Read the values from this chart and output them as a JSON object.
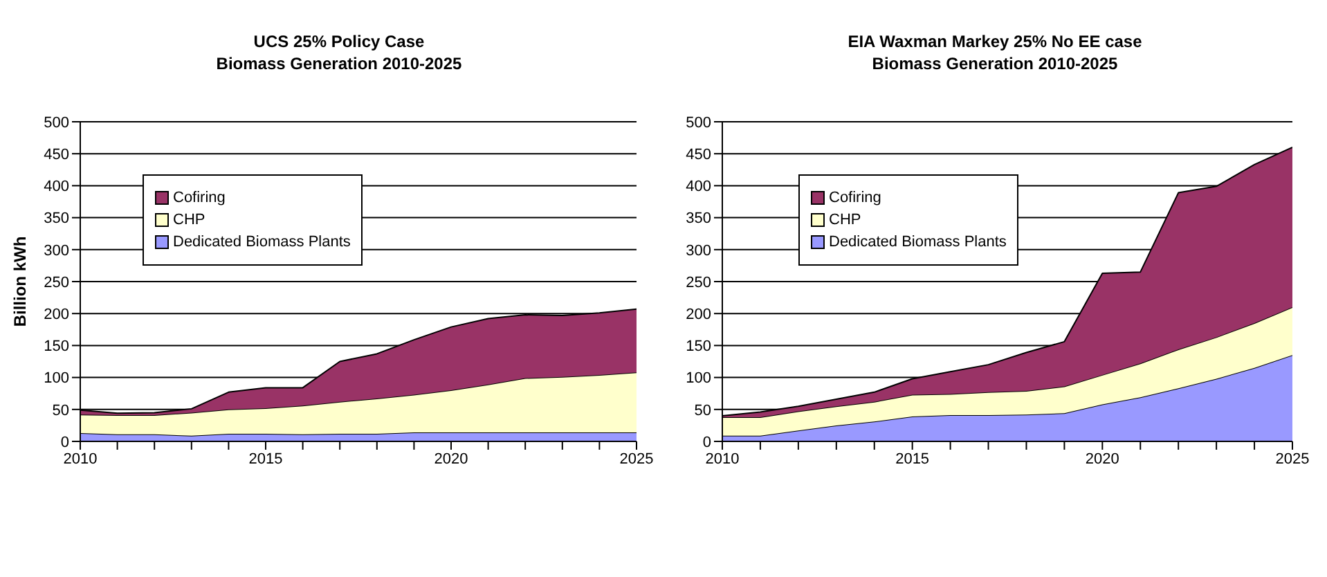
{
  "chart_data": [
    {
      "type": "area",
      "stacked": true,
      "title": "UCS 25% Policy Case\nBiomass Generation 2010-2025",
      "ylabel": "Billion kWh",
      "x": [
        2010,
        2011,
        2012,
        2013,
        2014,
        2015,
        2016,
        2017,
        2018,
        2019,
        2020,
        2021,
        2022,
        2023,
        2024,
        2025
      ],
      "xlim": [
        2010,
        2025
      ],
      "xticks": [
        2010,
        {
          "value": 2011,
          "label": null
        },
        {
          "value": 2012,
          "label": null
        },
        {
          "value": 2013,
          "label": null
        },
        {
          "value": 2014,
          "label": null
        },
        2015,
        {
          "value": 2016,
          "label": null
        },
        {
          "value": 2017,
          "label": null
        },
        {
          "value": 2018,
          "label": null
        },
        {
          "value": 2019,
          "label": null
        },
        2020,
        {
          "value": 2021,
          "label": null
        },
        {
          "value": 2022,
          "label": null
        },
        {
          "value": 2023,
          "label": null
        },
        {
          "value": 2024,
          "label": null
        },
        2025
      ],
      "ylim": [
        0,
        500
      ],
      "yticks": [
        0,
        50,
        100,
        150,
        200,
        250,
        300,
        350,
        400,
        450,
        500
      ],
      "grid": "y",
      "legend": "top left",
      "series": [
        {
          "name": "Dedicated Biomass Plants",
          "color": "#9999ff",
          "values": [
            13,
            11,
            11,
            9,
            12,
            12,
            11,
            12,
            12,
            14,
            14,
            14,
            14,
            14,
            14,
            14
          ]
        },
        {
          "name": "CHP",
          "color": "#ffffcc",
          "values": [
            29,
            30,
            30,
            36,
            38,
            40,
            45,
            50,
            55,
            59,
            66,
            75,
            85,
            87,
            90,
            94
          ]
        },
        {
          "name": "Cofiring",
          "color": "#993366",
          "values": [
            7,
            3,
            4,
            6,
            27,
            32,
            28,
            63,
            70,
            86,
            99,
            103,
            99,
            96,
            97,
            99
          ]
        }
      ]
    },
    {
      "type": "area",
      "stacked": true,
      "title": "EIA Waxman Markey 25% No EE case\nBiomass Generation 2010-2025",
      "x": [
        2010,
        2011,
        2012,
        2013,
        2014,
        2015,
        2016,
        2017,
        2018,
        2019,
        2020,
        2021,
        2022,
        2023,
        2024,
        2025
      ],
      "xlim": [
        2010,
        2025
      ],
      "xticks": [
        2010,
        {
          "value": 2011,
          "label": null
        },
        {
          "value": 2012,
          "label": null
        },
        {
          "value": 2013,
          "label": null
        },
        {
          "value": 2014,
          "label": null
        },
        2015,
        {
          "value": 2016,
          "label": null
        },
        {
          "value": 2017,
          "label": null
        },
        {
          "value": 2018,
          "label": null
        },
        {
          "value": 2019,
          "label": null
        },
        2020,
        {
          "value": 2021,
          "label": null
        },
        {
          "value": 2022,
          "label": null
        },
        {
          "value": 2023,
          "label": null
        },
        {
          "value": 2024,
          "label": null
        },
        2025
      ],
      "ylim": [
        0,
        500
      ],
      "yticks": [
        0,
        50,
        100,
        150,
        200,
        250,
        300,
        350,
        400,
        450,
        500
      ],
      "grid": "y",
      "legend": "top left",
      "series": [
        {
          "name": "Dedicated Biomass Plants",
          "color": "#9999ff",
          "values": [
            9,
            9,
            17,
            25,
            31,
            39,
            41,
            41,
            42,
            44,
            58,
            69,
            83,
            98,
            115,
            135
          ]
        },
        {
          "name": "CHP",
          "color": "#ffffcc",
          "values": [
            29,
            29,
            30,
            30,
            31,
            34,
            33,
            36,
            37,
            42,
            46,
            53,
            61,
            65,
            70,
            75
          ]
        },
        {
          "name": "Cofiring",
          "color": "#993366",
          "values": [
            2,
            8,
            8,
            11,
            15,
            25,
            35,
            43,
            60,
            70,
            159,
            143,
            245,
            236,
            248,
            250
          ]
        }
      ]
    }
  ]
}
